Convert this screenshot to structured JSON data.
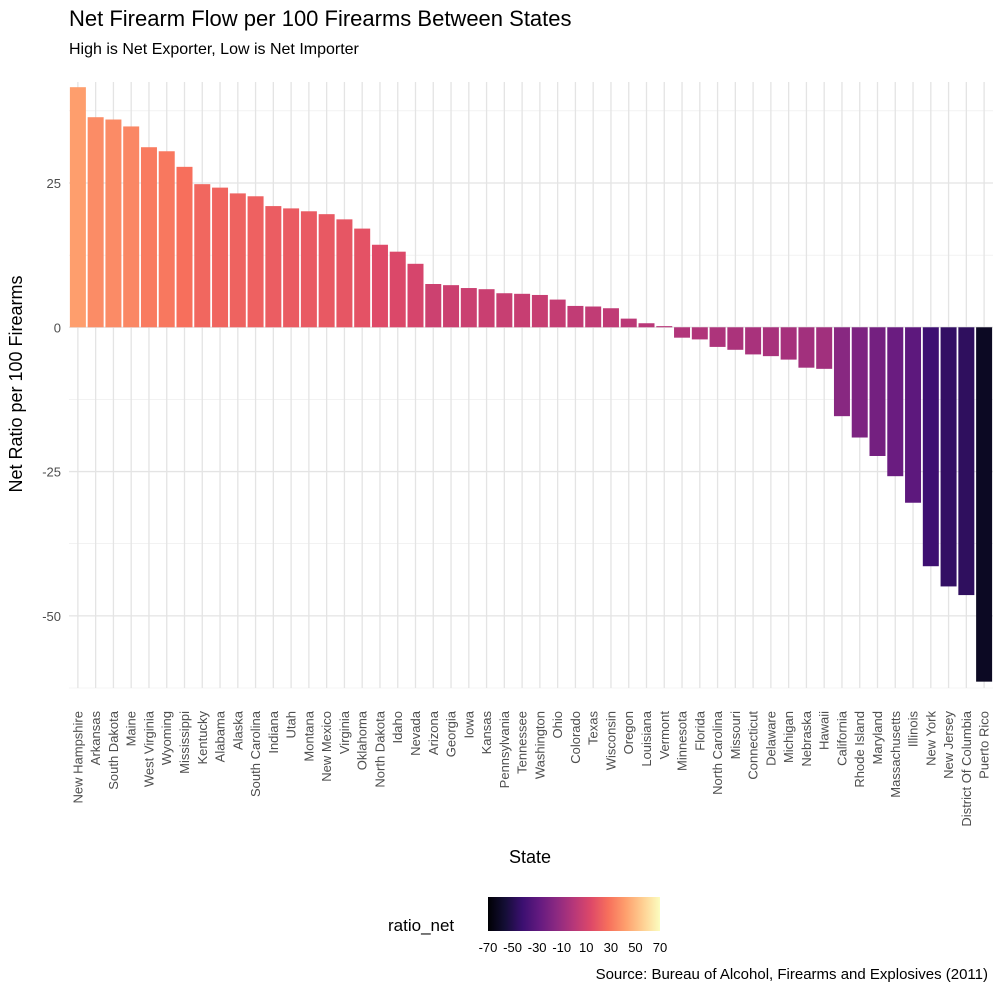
{
  "chart_data": {
    "type": "bar",
    "title": "Net Firearm Flow per 100 Firearms Between States",
    "subtitle": "High is Net Exporter, Low is Net Importer",
    "caption": "Source: Bureau of Alcohol, Firearms and Explosives (2011)",
    "xlabel": "State",
    "ylabel": "Net Ratio per 100 Firearms",
    "ylim": [
      -62.5,
      42.5
    ],
    "yticks": [
      -50,
      -25,
      0,
      25
    ],
    "grid": true,
    "legend": {
      "title": "ratio_net",
      "position": "bottom",
      "range": [
        -70,
        70
      ],
      "ticks": [
        -70,
        -50,
        -30,
        -10,
        10,
        30,
        50,
        70
      ]
    },
    "categories": [
      "New Hampshire",
      "Arkansas",
      "South Dakota",
      "Maine",
      "West Virginia",
      "Wyoming",
      "Mississippi",
      "Kentucky",
      "Alabama",
      "Alaska",
      "South Carolina",
      "Indiana",
      "Utah",
      "Montana",
      "New Mexico",
      "Virginia",
      "Oklahoma",
      "North Dakota",
      "Idaho",
      "Nevada",
      "Arizona",
      "Georgia",
      "Iowa",
      "Kansas",
      "Pennsylvania",
      "Tennessee",
      "Washington",
      "Ohio",
      "Colorado",
      "Texas",
      "Wisconsin",
      "Oregon",
      "Louisiana",
      "Vermont",
      "Minnesota",
      "Florida",
      "North Carolina",
      "Missouri",
      "Connecticut",
      "Delaware",
      "Michigan",
      "Nebraska",
      "Hawaii",
      "California",
      "Rhode Island",
      "Maryland",
      "Massachusetts",
      "Illinois",
      "New York",
      "New Jersey",
      "District Of Columbia",
      "Puerto Rico"
    ],
    "values": [
      41.6,
      36.4,
      36.0,
      34.8,
      31.2,
      30.5,
      27.8,
      24.8,
      24.2,
      23.2,
      22.7,
      21.0,
      20.6,
      20.1,
      19.6,
      18.7,
      17.1,
      14.3,
      13.1,
      11.0,
      7.5,
      7.3,
      6.8,
      6.6,
      5.9,
      5.8,
      5.6,
      4.8,
      3.7,
      3.6,
      3.3,
      1.5,
      0.7,
      0.2,
      -1.8,
      -2.1,
      -3.4,
      -3.9,
      -4.7,
      -5.0,
      -5.6,
      -7.0,
      -7.2,
      -15.4,
      -19.1,
      -22.3,
      -25.8,
      -30.4,
      -41.4,
      -44.9,
      -46.4,
      -61.4
    ]
  }
}
